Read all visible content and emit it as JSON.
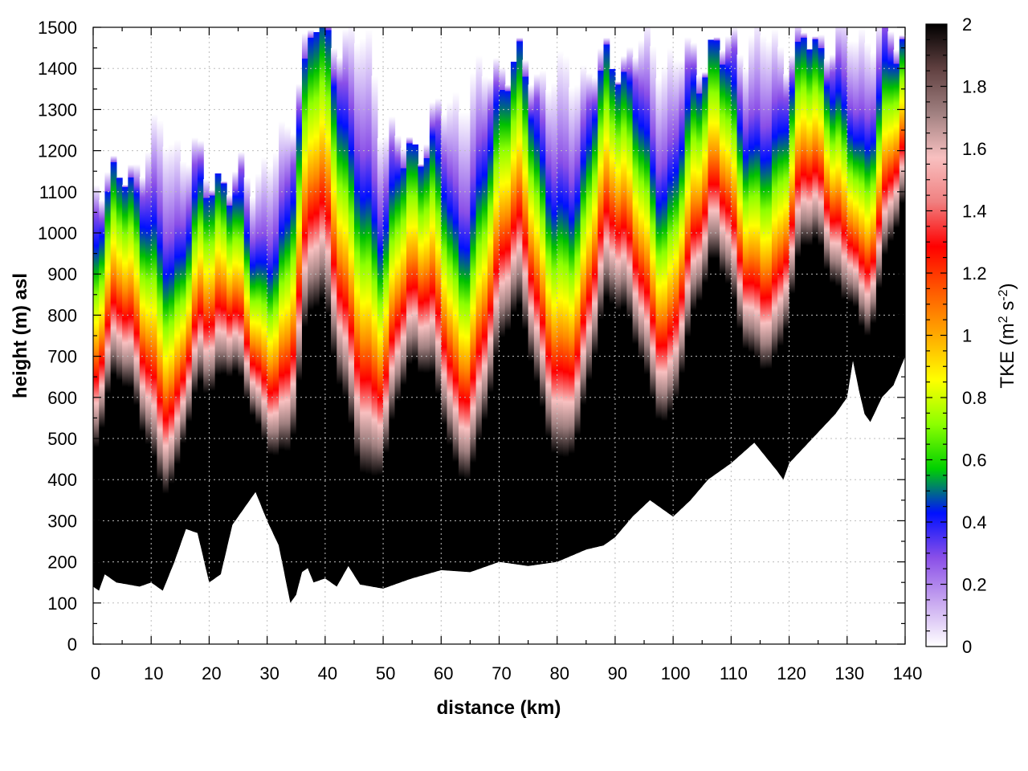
{
  "chart_data": {
    "type": "heatmap",
    "title": "",
    "xlabel": "distance (km)",
    "ylabel": "height (m) asl",
    "xlim": [
      0,
      140
    ],
    "ylim": [
      0,
      1500
    ],
    "x_ticks": [
      0,
      10,
      20,
      30,
      40,
      50,
      60,
      70,
      80,
      90,
      100,
      110,
      120,
      130,
      140
    ],
    "y_ticks": [
      0,
      100,
      200,
      300,
      400,
      500,
      600,
      700,
      800,
      900,
      1000,
      1100,
      1200,
      1300,
      1400,
      1500
    ],
    "x_tick_labels": [
      "0",
      "10",
      "20",
      "30",
      "40",
      "50",
      "60",
      "70",
      "80",
      "90",
      "100",
      "110",
      "120",
      "130",
      "140"
    ],
    "y_tick_labels": [
      "0",
      "100",
      "200",
      "300",
      "400",
      "500",
      "600",
      "700",
      "800",
      "900",
      "1000",
      "1100",
      "1200",
      "1300",
      "1400",
      "1500"
    ],
    "grid": true,
    "colorbar": {
      "label_prefix": "TKE (m",
      "label_sup1": "2",
      "label_mid": " s",
      "label_sup2": "-2",
      "label_suffix": ")",
      "range": [
        0,
        2
      ],
      "ticks": [
        0,
        0.2,
        0.4,
        0.6,
        0.8,
        1,
        1.2,
        1.4,
        1.6,
        1.8,
        2
      ],
      "tick_labels": [
        "0",
        "0.2",
        "0.4",
        "0.6",
        "0.8",
        "1",
        "1.2",
        "1.4",
        "1.6",
        "1.8",
        "2"
      ],
      "colormap": [
        "#ffffff",
        "#c8a8f0",
        "#8a4fe8",
        "#0010ff",
        "#00d000",
        "#8cff00",
        "#ffff00",
        "#ffaa00",
        "#ff5a00",
        "#ff0000",
        "#f08080",
        "#f8c0c0",
        "#a08080",
        "#604040",
        "#000000"
      ]
    },
    "terrain": {
      "x": [
        0,
        1,
        2,
        4,
        6,
        8,
        10,
        12,
        14,
        16,
        18,
        20,
        22,
        24,
        26,
        28,
        30,
        32,
        34,
        35,
        36,
        37,
        38,
        40,
        42,
        44,
        46,
        48,
        50,
        55,
        60,
        65,
        70,
        75,
        80,
        85,
        88,
        90,
        93,
        96,
        100,
        103,
        106,
        110,
        114,
        118,
        119,
        120,
        124,
        128,
        130,
        131,
        132,
        133,
        134,
        136,
        138,
        140
      ],
      "height": [
        140,
        130,
        170,
        150,
        145,
        140,
        150,
        130,
        200,
        280,
        270,
        150,
        170,
        290,
        330,
        370,
        300,
        240,
        100,
        120,
        175,
        185,
        150,
        160,
        140,
        190,
        145,
        140,
        135,
        160,
        180,
        175,
        200,
        190,
        200,
        230,
        240,
        260,
        310,
        350,
        310,
        350,
        400,
        440,
        490,
        420,
        400,
        440,
        500,
        560,
        600,
        690,
        620,
        560,
        540,
        600,
        630,
        700
      ]
    },
    "turbulent_layer_top": {
      "x": [
        0,
        4,
        8,
        12,
        16,
        20,
        24,
        28,
        32,
        34,
        36,
        38,
        40,
        44,
        48,
        50,
        55,
        60,
        65,
        70,
        75,
        80,
        85,
        90,
        95,
        100,
        105,
        110,
        115,
        120,
        125,
        130,
        135,
        140
      ],
      "height": [
        1150,
        1120,
        1180,
        1250,
        1200,
        1150,
        1120,
        1150,
        1200,
        1250,
        1450,
        1500,
        1500,
        1480,
        1450,
        1250,
        1200,
        1300,
        1350,
        1420,
        1400,
        1380,
        1400,
        1420,
        1460,
        1420,
        1440,
        1460,
        1480,
        1450,
        1470,
        1480,
        1490,
        1480
      ]
    }
  }
}
